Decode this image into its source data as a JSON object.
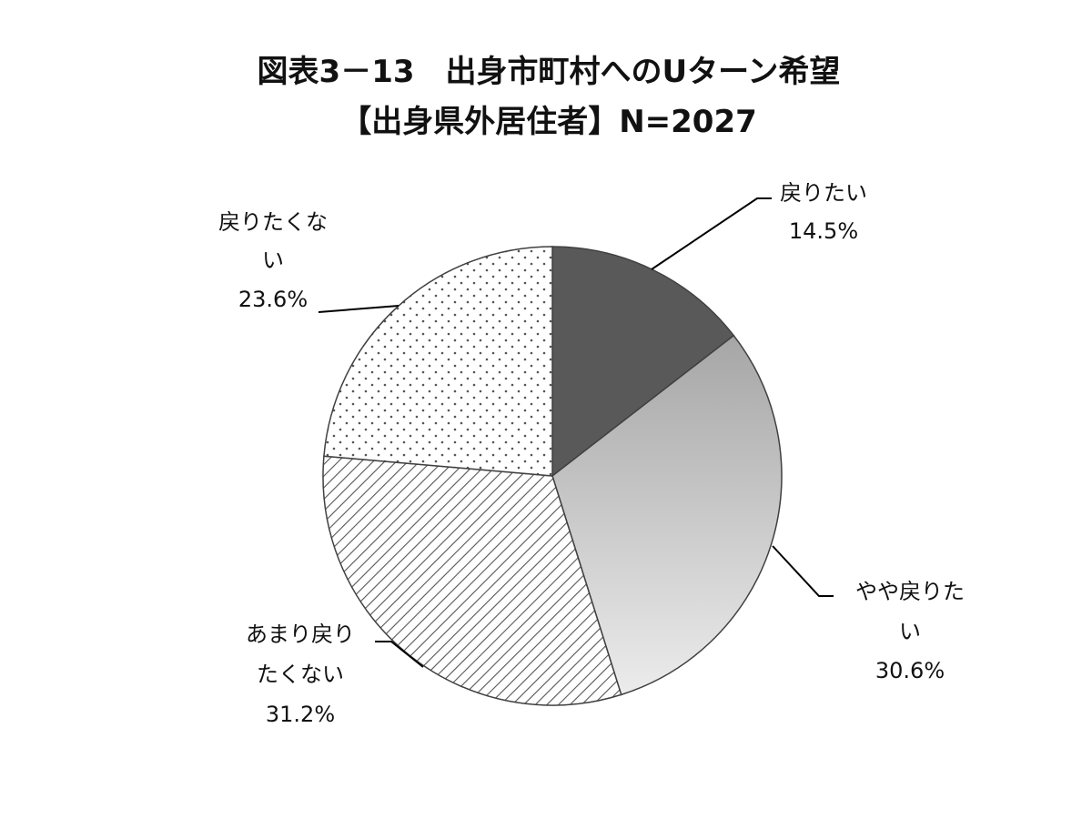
{
  "chart_data": {
    "type": "pie",
    "title": "図表3－13　出身市町村へのUターン希望",
    "subtitle": "【出身県外居住者】N=2027",
    "slices": [
      {
        "label_lines": [
          "戻りたい"
        ],
        "value": 14.5,
        "value_label": "14.5%",
        "fill": "solid-dark"
      },
      {
        "label_lines": [
          "やや戻りた",
          "い"
        ],
        "value": 30.6,
        "value_label": "30.6%",
        "fill": "gradient-gray"
      },
      {
        "label_lines": [
          "あまり戻り",
          "たくない"
        ],
        "value": 31.2,
        "value_label": "31.2%",
        "fill": "diagonal-hatch"
      },
      {
        "label_lines": [
          "戻りたくな",
          "い"
        ],
        "value": 23.6,
        "value_label": "23.6%",
        "fill": "dotted"
      }
    ],
    "start_angle_deg": -90,
    "direction": "clockwise",
    "colors": {
      "dark": "#595959",
      "gradient_start": "#a6a6a6",
      "gradient_end": "#ececec",
      "stroke": "#404040",
      "pattern": "#555555"
    }
  }
}
